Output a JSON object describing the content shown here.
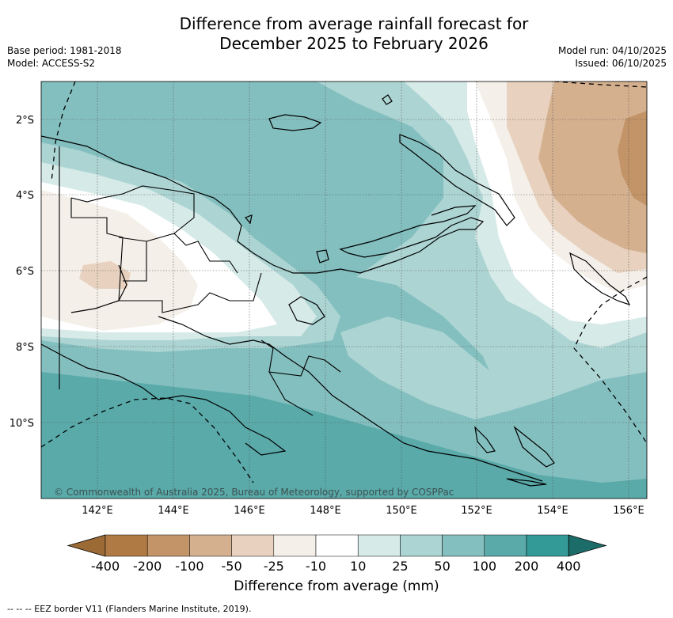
{
  "title_line1": "Difference from average rainfall forecast for",
  "title_line2": "December 2025 to February 2026",
  "base_period": "Base period: 1981-2018",
  "model": "Model: ACCESS-S2",
  "model_run": "Model run: 04/10/2025",
  "issued": "Issued: 06/10/2025",
  "copyright": "© Commonwealth of Australia 2025, Bureau of Meteorology, supported by COSPPac",
  "lat_labels": [
    "2°S",
    "4°S",
    "6°S",
    "8°S",
    "10°S"
  ],
  "lon_labels": [
    "142°E",
    "144°E",
    "146°E",
    "148°E",
    "150°E",
    "152°E",
    "154°E",
    "156°E"
  ],
  "colorbar": {
    "title": "Difference from average (mm)",
    "labels": [
      "-400",
      "-200",
      "-100",
      "-50",
      "-25",
      "-10",
      "10",
      "25",
      "50",
      "100",
      "200",
      "400"
    ],
    "colors": [
      "#9b6a35",
      "#b07a45",
      "#c39467",
      "#d5b08f",
      "#e8d2bf",
      "#f4efe8",
      "#ffffff",
      "#d6eae8",
      "#acd4d3",
      "#84bfbf",
      "#5aaaaa",
      "#339a97",
      "#1c6d6a"
    ]
  },
  "footer": "-- -- -- EEZ border V11 (Flanders Marine Institute, 2019).",
  "colors": {
    "land_border": "#000000",
    "grid": "#555555"
  }
}
